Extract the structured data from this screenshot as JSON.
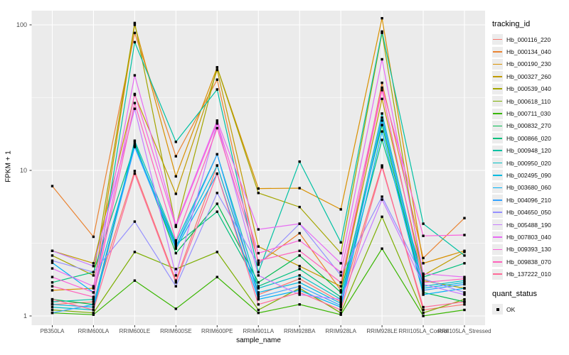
{
  "chart_data": {
    "type": "line",
    "xlabel": "sample_name",
    "ylabel": "FPKM + 1",
    "y_scale": "log10",
    "y_ticks": [
      1,
      10,
      100
    ],
    "y_minor": [
      3.162,
      31.62
    ],
    "grid": true,
    "panel_bg": "#ebebeb",
    "grid_color": "#ffffff",
    "marker": "black-square",
    "categories": [
      "PB350LA",
      "RRIM600LA",
      "RRIM600LE",
      "RRIM600SE",
      "RRIM600PE",
      "RRIM901LA",
      "RRIM928BA",
      "RRIM928LA",
      "RRIM928LE",
      "RRII105LA_Control",
      "RRII105LA_Stressed"
    ],
    "legend": {
      "title": "tracking_id",
      "position": "right"
    },
    "quant_status": {
      "title": "quant_status",
      "items": [
        {
          "label": "OK"
        }
      ]
    },
    "series": [
      {
        "name": "Hb_000116_220",
        "color": "#F8766D",
        "values": [
          1.2,
          1.25,
          9.9,
          1.75,
          10.8,
          1.4,
          1.8,
          1.25,
          10.8,
          1.1,
          1.2
        ]
      },
      {
        "name": "Hb_000134_040",
        "color": "#EA8331",
        "values": [
          7.8,
          3.5,
          88,
          12.5,
          42,
          2.3,
          3.7,
          1.5,
          40,
          2.5,
          4.7
        ]
      },
      {
        "name": "Hb_000190_230",
        "color": "#D89000",
        "values": [
          1.5,
          1.55,
          100,
          9.1,
          51,
          7.5,
          7.55,
          5.4,
          111,
          2.3,
          2.8
        ]
      },
      {
        "name": "Hb_000327_260",
        "color": "#C09B00",
        "values": [
          2.8,
          2.3,
          33,
          6.9,
          49,
          3.0,
          2.2,
          1.6,
          31,
          1.9,
          2.75
        ]
      },
      {
        "name": "Hb_000539_040",
        "color": "#A3A500",
        "values": [
          2.6,
          1.9,
          103,
          4.1,
          51,
          7.0,
          5.6,
          2.7,
          88,
          1.75,
          1.55
        ]
      },
      {
        "name": "Hb_000618_110",
        "color": "#7CAE00",
        "values": [
          1.1,
          1.05,
          2.75,
          2.1,
          2.75,
          1.1,
          1.55,
          1.05,
          4.8,
          1.05,
          1.3
        ]
      },
      {
        "name": "Hb_000711_030",
        "color": "#39B600",
        "values": [
          1.05,
          1.02,
          1.75,
          1.12,
          1.85,
          1.05,
          1.2,
          1.02,
          2.9,
          1.0,
          1.1
        ]
      },
      {
        "name": "Hb_000832_270",
        "color": "#00BB4E",
        "values": [
          1.3,
          1.2,
          15.5,
          2.7,
          5.9,
          1.7,
          2.6,
          1.45,
          20.5,
          1.45,
          1.25
        ]
      },
      {
        "name": "Hb_000866_020",
        "color": "#00BF7D",
        "values": [
          1.7,
          2.0,
          14.8,
          3.1,
          5.2,
          1.6,
          2.1,
          1.35,
          16.2,
          1.85,
          2.3
        ]
      },
      {
        "name": "Hb_000948_120",
        "color": "#00C1A3",
        "values": [
          1.25,
          1.3,
          76,
          15.7,
          36,
          2.0,
          11.5,
          3.2,
          90,
          4.3,
          2.6
        ]
      },
      {
        "name": "Hb_000950_020",
        "color": "#00BFC4",
        "values": [
          1.15,
          1.1,
          16,
          3.2,
          12.9,
          1.55,
          1.9,
          1.3,
          24.6,
          1.6,
          1.75
        ]
      },
      {
        "name": "Hb_002495_090",
        "color": "#00BAE0",
        "values": [
          1.2,
          1.15,
          15,
          3.0,
          10.8,
          1.45,
          1.7,
          1.22,
          22,
          1.55,
          1.7
        ]
      },
      {
        "name": "Hb_003680_060",
        "color": "#00B0F6",
        "values": [
          2.32,
          1.45,
          14.5,
          2.9,
          9.5,
          1.3,
          1.5,
          1.15,
          18.5,
          1.4,
          1.55
        ]
      },
      {
        "name": "Hb_004096_210",
        "color": "#35A2FF",
        "values": [
          1.05,
          1.2,
          14.5,
          3.0,
          12.9,
          1.35,
          1.6,
          1.18,
          23,
          1.5,
          1.65
        ]
      },
      {
        "name": "Hb_004650_050",
        "color": "#9590FF",
        "values": [
          2.4,
          2.0,
          4.45,
          1.6,
          7.0,
          2.25,
          4.3,
          1.9,
          6.6,
          1.8,
          1.45
        ]
      },
      {
        "name": "Hb_005488_190",
        "color": "#C77CFF",
        "values": [
          2.8,
          2.2,
          26.5,
          1.9,
          21,
          1.9,
          1.4,
          1.3,
          6.3,
          1.65,
          1.4
        ]
      },
      {
        "name": "Hb_007803_040",
        "color": "#E76BF3",
        "values": [
          2.12,
          1.6,
          45,
          4.2,
          22,
          3.93,
          4.3,
          2.3,
          58,
          1.95,
          1.85
        ]
      },
      {
        "name": "Hb_009393_130",
        "color": "#FA62DB",
        "values": [
          1.85,
          1.45,
          33.5,
          4.1,
          21.2,
          2.7,
          3.3,
          2.0,
          37,
          3.55,
          3.6
        ]
      },
      {
        "name": "Hb_009838_070",
        "color": "#FF62BC",
        "values": [
          1.6,
          1.35,
          29,
          3.3,
          19.5,
          2.4,
          2.8,
          1.7,
          35.6,
          1.7,
          1.8
        ]
      },
      {
        "name": "Hb_137222_010",
        "color": "#FF6A98",
        "values": [
          1.3,
          1.1,
          9.5,
          1.7,
          9.5,
          1.2,
          1.45,
          1.1,
          10.5,
          1.15,
          1.25
        ]
      }
    ]
  }
}
